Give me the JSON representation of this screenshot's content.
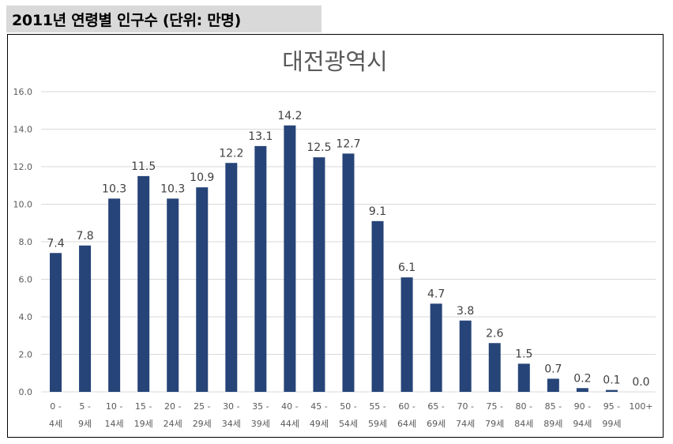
{
  "header": {
    "title": "2011년 연령별 인구수 (단위: 만명)"
  },
  "colors": {
    "bar": "#264478",
    "grid": "#d9d9d9",
    "axis_text": "#595959",
    "title_text": "#595959",
    "header_bg": "#d9d9d9"
  },
  "chart_data": {
    "type": "bar",
    "title": "대전광역시",
    "xlabel": "",
    "ylabel": "",
    "ylim": [
      0,
      16
    ],
    "yticks": [
      "0.0",
      "2.0",
      "4.0",
      "6.0",
      "8.0",
      "10.0",
      "12.0",
      "14.0",
      "16.0"
    ],
    "grid": true,
    "legend": "none",
    "categories": [
      [
        "0 -",
        "4세"
      ],
      [
        "5 -",
        "9세"
      ],
      [
        "10 -",
        "14세"
      ],
      [
        "15 -",
        "19세"
      ],
      [
        "20 -",
        "24세"
      ],
      [
        "25 -",
        "29세"
      ],
      [
        "30 -",
        "34세"
      ],
      [
        "35 -",
        "39세"
      ],
      [
        "40 -",
        "44세"
      ],
      [
        "45 -",
        "49세"
      ],
      [
        "50 -",
        "54세"
      ],
      [
        "55 -",
        "59세"
      ],
      [
        "60 -",
        "64세"
      ],
      [
        "65 -",
        "69세"
      ],
      [
        "70 -",
        "74세"
      ],
      [
        "75 -",
        "79세"
      ],
      [
        "80 -",
        "84세"
      ],
      [
        "85 -",
        "89세"
      ],
      [
        "90 -",
        "94세"
      ],
      [
        "95 -",
        "99세"
      ],
      [
        "100+"
      ]
    ],
    "values": [
      7.4,
      7.8,
      10.3,
      11.5,
      10.3,
      10.9,
      12.2,
      13.1,
      14.2,
      12.5,
      12.7,
      9.1,
      6.1,
      4.7,
      3.8,
      2.6,
      1.5,
      0.7,
      0.2,
      0.1,
      0.0
    ],
    "data_labels": [
      "7.4",
      "7.8",
      "10.3",
      "11.5",
      "10.3",
      "10.9",
      "12.2",
      "13.1",
      "14.2",
      "12.5",
      "12.7",
      "9.1",
      "6.1",
      "4.7",
      "3.8",
      "2.6",
      "1.5",
      "0.7",
      "0.2",
      "0.1",
      "0.0"
    ]
  }
}
